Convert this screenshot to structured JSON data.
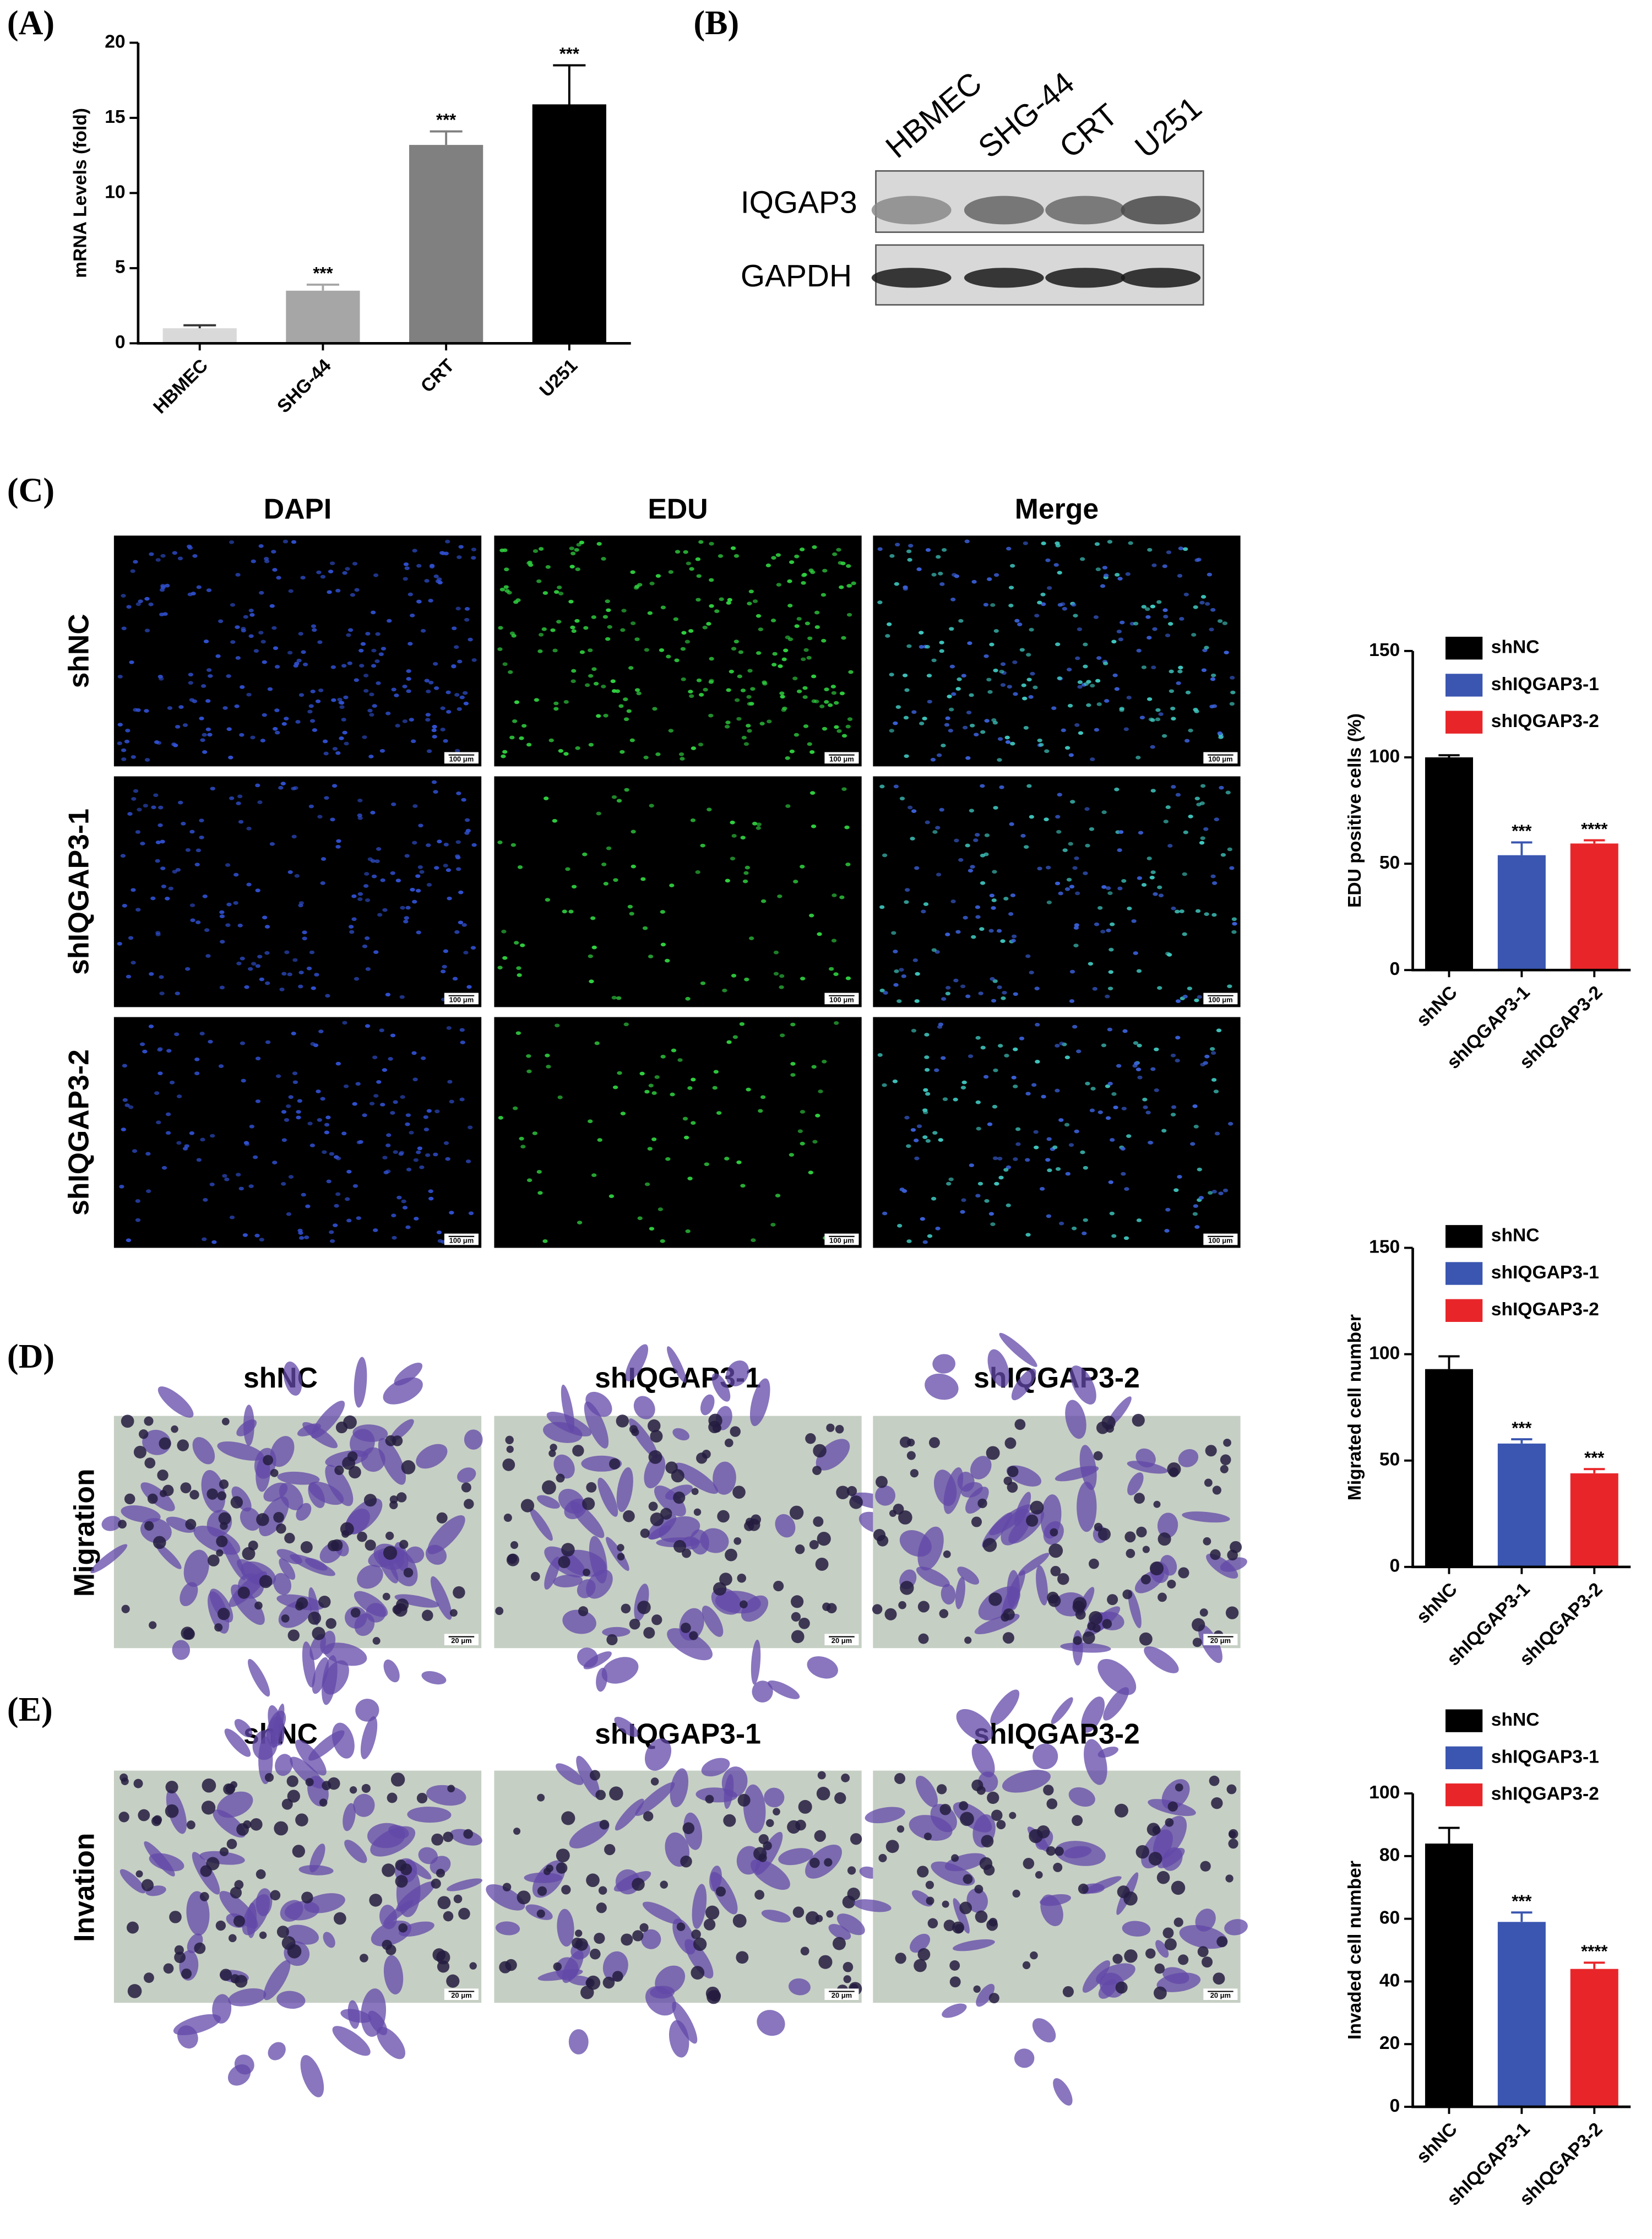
{
  "panel_labels": [
    "(A)",
    "(B)",
    "(C)",
    "(D)",
    "(E)"
  ],
  "blot": {
    "lanes": [
      "HBMEC",
      "SHG-44",
      "CRT",
      "U251"
    ],
    "rows": [
      "IQGAP3",
      "GAPDH"
    ]
  },
  "edu": {
    "columns": [
      "DAPI",
      "EDU",
      "Merge"
    ],
    "rows": [
      "shNC",
      "shIQGAP3-1",
      "shIQGAP3-2"
    ],
    "scale_bar": "100 μm"
  },
  "migration": {
    "columns": [
      "shNC",
      "shIQGAP3-1",
      "shIQGAP3-2"
    ],
    "row": "Migration",
    "scale_bar": "20 μm"
  },
  "invasion": {
    "columns": [
      "shNC",
      "shIQGAP3-1",
      "shIQGAP3-2"
    ],
    "row": "Invation",
    "scale_bar": "20 μm"
  },
  "chart_data": [
    {
      "type": "bar",
      "y_label": "mRNA Levels (fold)",
      "categories": [
        "HBMEC",
        "SHG-44",
        "CRT",
        "U251"
      ],
      "values": [
        1,
        3.5,
        13.2,
        15.9
      ],
      "errors": [
        0.2,
        0.4,
        0.9,
        2.6
      ],
      "annotations": [
        null,
        "***",
        "***",
        "***"
      ],
      "colors": [
        "#d9d9d9",
        "#a6a6a6",
        "#808080",
        "#000000"
      ],
      "ylim": [
        0,
        20
      ],
      "yticks": [
        0,
        5,
        10,
        15,
        20
      ]
    },
    {
      "type": "bar",
      "y_label": "EDU positive cells (%)",
      "categories": [
        "shNC",
        "shIQGAP3-1",
        "shIQGAP3-2"
      ],
      "values": [
        100,
        54,
        59.5
      ],
      "errors": [
        1,
        6,
        1.5
      ],
      "annotations": [
        null,
        "***",
        "****"
      ],
      "colors": [
        "#000000",
        "#3a56b0",
        "#e8262a"
      ],
      "legend": [
        "shNC",
        "shIQGAP3-1",
        "shIQGAP3-2"
      ],
      "ylim": [
        0,
        150
      ],
      "yticks": [
        0,
        50,
        100,
        150
      ]
    },
    {
      "type": "bar",
      "y_label": "Migrated cell number",
      "categories": [
        "shNC",
        "shIQGAP3-1",
        "shIQGAP3-2"
      ],
      "values": [
        93,
        58,
        44
      ],
      "errors": [
        6,
        2,
        2
      ],
      "annotations": [
        null,
        "***",
        "***"
      ],
      "colors": [
        "#000000",
        "#3a56b0",
        "#e8262a"
      ],
      "legend": [
        "shNC",
        "shIQGAP3-1",
        "shIQGAP3-2"
      ],
      "ylim": [
        0,
        150
      ],
      "yticks": [
        0,
        50,
        100,
        150
      ]
    },
    {
      "type": "bar",
      "y_label": "Invaded cell number",
      "categories": [
        "shNC",
        "shIQGAP3-1",
        "shIQGAP3-2"
      ],
      "values": [
        84,
        59,
        44
      ],
      "errors": [
        5,
        3,
        2
      ],
      "annotations": [
        null,
        "***",
        "****"
      ],
      "colors": [
        "#000000",
        "#3a56b0",
        "#e8262a"
      ],
      "legend": [
        "shNC",
        "shIQGAP3-1",
        "shIQGAP3-2"
      ],
      "ylim": [
        0,
        100
      ],
      "yticks": [
        0,
        20,
        40,
        60,
        80,
        100
      ]
    }
  ]
}
